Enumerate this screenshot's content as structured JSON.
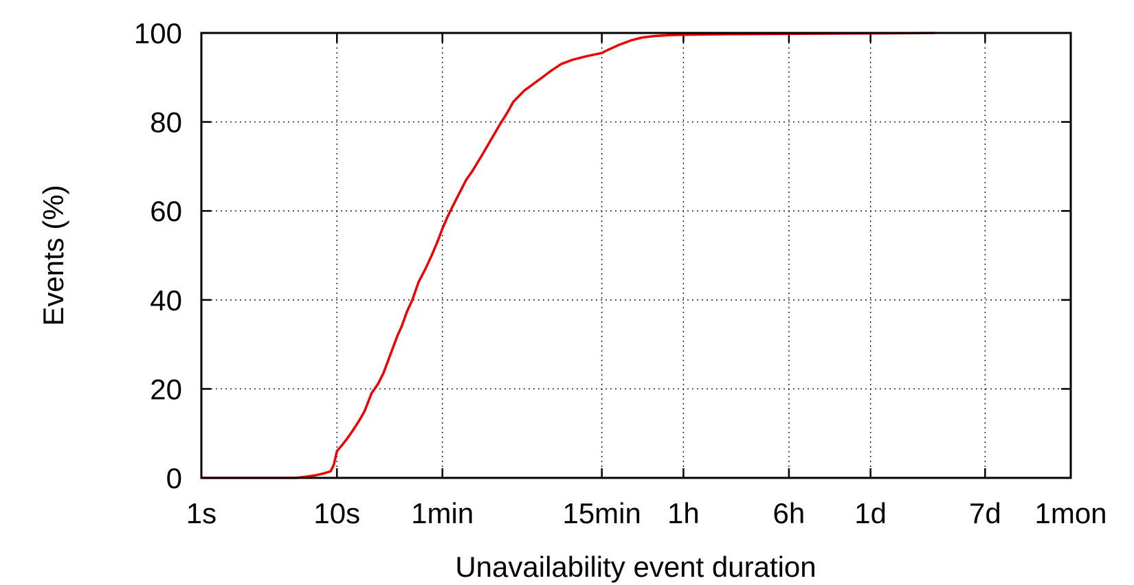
{
  "chart_data": {
    "type": "line",
    "title": "",
    "xlabel": "Unavailability event duration",
    "ylabel": "Events (%)",
    "x_scale": "log",
    "xlim": [
      "1s",
      "1mon"
    ],
    "ylim": [
      0,
      100
    ],
    "x_ticks": [
      {
        "label": "1s",
        "seconds": 1
      },
      {
        "label": "10s",
        "seconds": 10
      },
      {
        "label": "1min",
        "seconds": 60
      },
      {
        "label": "15min",
        "seconds": 900
      },
      {
        "label": "1h",
        "seconds": 3600
      },
      {
        "label": "6h",
        "seconds": 21600
      },
      {
        "label": "1d",
        "seconds": 86400
      },
      {
        "label": "7d",
        "seconds": 604800
      },
      {
        "label": "1mon",
        "seconds": 2592000
      }
    ],
    "y_ticks": [
      0,
      20,
      40,
      60,
      80,
      100
    ],
    "grid": true,
    "series": [
      {
        "color": "#ee0000",
        "x_seconds": [
          1,
          5,
          6,
          7,
          8,
          9,
          9.5,
          10,
          11,
          12,
          13,
          14,
          15,
          16,
          18,
          20,
          22,
          25,
          28,
          30,
          33,
          36,
          40,
          45,
          50,
          55,
          60,
          65,
          70,
          80,
          90,
          100,
          120,
          140,
          160,
          180,
          200,
          240,
          280,
          320,
          380,
          450,
          550,
          700,
          900,
          1000,
          1200,
          1500,
          1800,
          2200,
          2800,
          3600,
          7200,
          21600,
          86400,
          259200
        ],
        "y_percent": [
          0,
          0,
          0.3,
          0.6,
          1.0,
          1.5,
          3.0,
          6.0,
          7.5,
          9.0,
          10.5,
          12.0,
          13.5,
          15.0,
          19.0,
          21.0,
          23.5,
          28.0,
          32.0,
          34.0,
          37.5,
          40.0,
          44.0,
          47.0,
          50.0,
          53.0,
          56.0,
          58.5,
          60.5,
          64.0,
          67.0,
          69.0,
          73.0,
          76.5,
          79.5,
          82.0,
          84.5,
          87.0,
          88.5,
          89.8,
          91.5,
          93.0,
          94.0,
          94.8,
          95.5,
          96.2,
          97.3,
          98.4,
          99.0,
          99.3,
          99.5,
          99.6,
          99.7,
          99.8,
          99.9,
          100.0
        ]
      }
    ]
  }
}
